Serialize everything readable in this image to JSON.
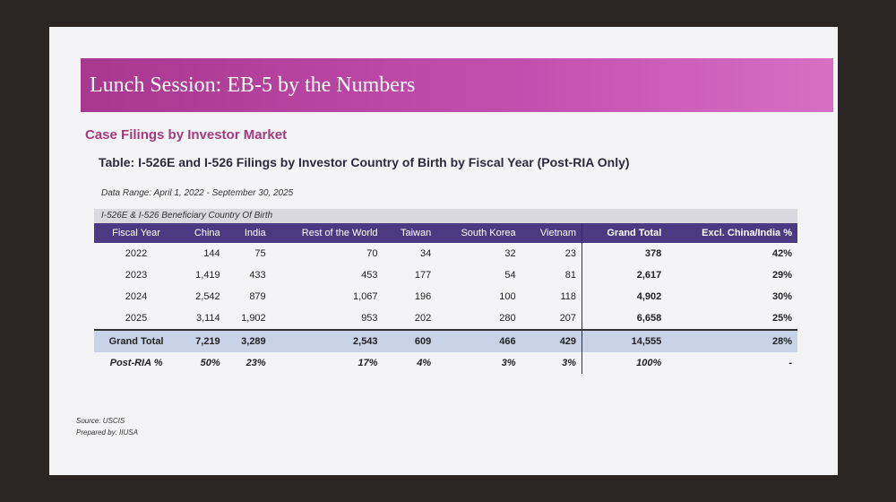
{
  "header": {
    "title": "Lunch Session: EB-5 by the Numbers"
  },
  "section_title": "Case Filings by Investor Market",
  "table": {
    "title": "Table: I-526E and I-526 Filings by Investor Country of Birth by Fiscal Year (Post-RIA Only)",
    "data_range": "Data Range: April 1, 2022 - September 30, 2025",
    "group_label": "I-526E & I-526  Beneficiary Country Of Birth",
    "columns": [
      "Fiscal Year",
      "China",
      "India",
      "Rest of the World",
      "Taiwan",
      "South Korea",
      "Vietnam",
      "Grand Total",
      "Excl. China/India %"
    ],
    "rows": [
      [
        "2022",
        "144",
        "75",
        "70",
        "34",
        "32",
        "23",
        "378",
        "42%"
      ],
      [
        "2023",
        "1,419",
        "433",
        "453",
        "177",
        "54",
        "81",
        "2,617",
        "29%"
      ],
      [
        "2024",
        "2,542",
        "879",
        "1,067",
        "196",
        "100",
        "118",
        "4,902",
        "30%"
      ],
      [
        "2025",
        "3,114",
        "1,902",
        "953",
        "202",
        "280",
        "207",
        "6,658",
        "25%"
      ]
    ],
    "total_row": [
      "Grand Total",
      "7,219",
      "3,289",
      "2,543",
      "609",
      "466",
      "429",
      "14,555",
      "28%"
    ],
    "share_row": [
      "Post-RIA %",
      "50%",
      "23%",
      "17%",
      "4%",
      "3%",
      "3%",
      "100%",
      "-"
    ]
  },
  "footer": {
    "source": "Source: USCIS",
    "prepared": "Prepared by: IIUSA"
  }
}
